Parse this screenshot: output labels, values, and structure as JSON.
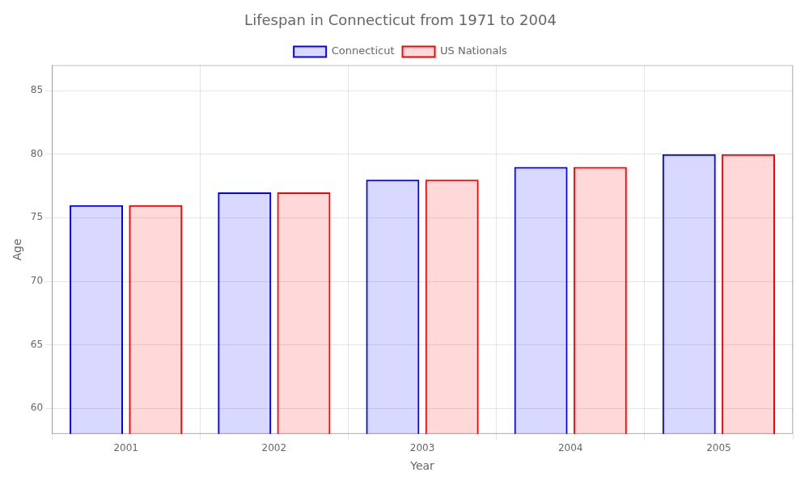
{
  "chart_data": {
    "type": "bar",
    "title": "Lifespan in Connecticut from 1971 to 2004",
    "xlabel": "Year",
    "ylabel": "Age",
    "categories": [
      "2001",
      "2002",
      "2003",
      "2004",
      "2005"
    ],
    "series": [
      {
        "name": "Connecticut",
        "color": "#0000ff",
        "values": [
          76,
          77,
          78,
          79,
          80
        ]
      },
      {
        "name": "US Nationals",
        "color": "#ff0000",
        "values": [
          76,
          77,
          78,
          79,
          80
        ]
      }
    ],
    "ylim": [
      58,
      87
    ],
    "yticks": [
      60,
      65,
      70,
      75,
      80,
      85
    ],
    "grid": true,
    "legend": "top"
  }
}
